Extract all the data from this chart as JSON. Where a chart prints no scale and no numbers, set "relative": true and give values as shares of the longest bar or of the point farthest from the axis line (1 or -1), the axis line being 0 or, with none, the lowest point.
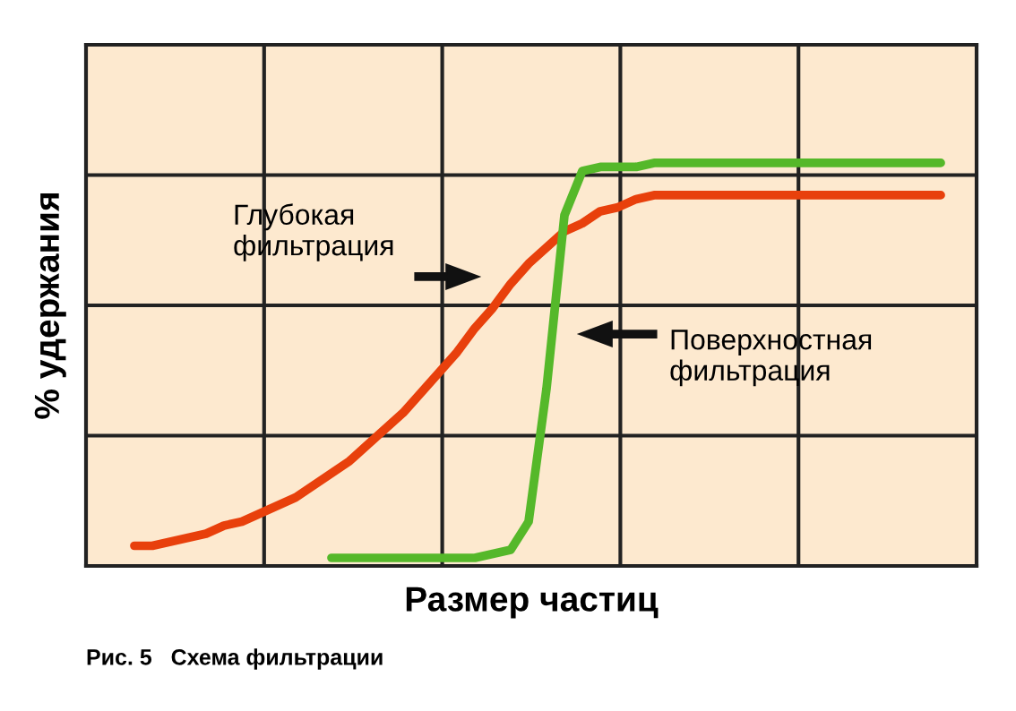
{
  "chart_data": {
    "type": "line",
    "relative": true,
    "xlabel": "Размер частиц",
    "ylabel": "% удержания",
    "categories": [
      null,
      null,
      null,
      null,
      null,
      null,
      null,
      null,
      null,
      null,
      null,
      null,
      null,
      null,
      null,
      null,
      null,
      null,
      null,
      null,
      null,
      null,
      null,
      null,
      null,
      null,
      null,
      null,
      null,
      null,
      null,
      null,
      null,
      null,
      null,
      null,
      null,
      null,
      null,
      null,
      null,
      null,
      null,
      null,
      null,
      null
    ],
    "series": [
      {
        "color": "#e8400c",
        "values": [
          0.05,
          0.05,
          0.06,
          0.07,
          0.08,
          0.1,
          0.11,
          0.13,
          0.15,
          0.17,
          0.2,
          0.23,
          0.26,
          0.3,
          0.34,
          0.38,
          0.43,
          0.48,
          0.53,
          0.59,
          0.64,
          0.7,
          0.75,
          0.79,
          0.83,
          0.85,
          0.88,
          0.89,
          0.91,
          0.92,
          0.92,
          0.92,
          0.92,
          0.92,
          0.92,
          0.92,
          0.92,
          0.92,
          0.92,
          0.92,
          0.92,
          0.92,
          0.92,
          0.92,
          0.92,
          0.92
        ]
      },
      {
        "color": "#55b82a",
        "values": [
          null,
          null,
          null,
          null,
          null,
          null,
          null,
          null,
          null,
          null,
          null,
          0.02,
          0.02,
          0.02,
          0.02,
          0.02,
          0.02,
          0.02,
          0.02,
          0.02,
          0.03,
          0.04,
          0.11,
          0.44,
          0.87,
          0.98,
          0.99,
          0.99,
          0.99,
          1.0,
          1.0,
          1.0,
          1.0,
          1.0,
          1.0,
          1.0,
          1.0,
          1.0,
          1.0,
          1.0,
          1.0,
          1.0,
          1.0,
          1.0,
          1.0,
          1.0
        ]
      }
    ],
    "annotations": [
      "Глубокая\nфильтрация",
      "Поверхностная\nфильтрация",
      "Рис. 5   Схема фильтрации"
    ],
    "grid": true,
    "tick_labels": false
  }
}
